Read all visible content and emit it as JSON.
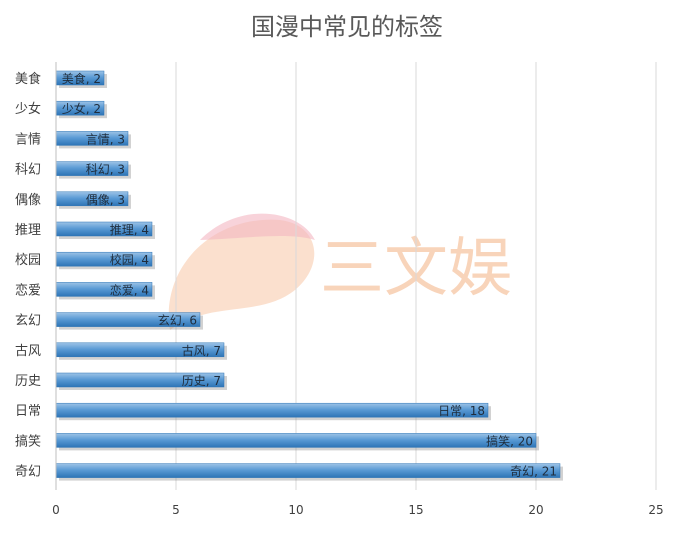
{
  "chart_data": {
    "type": "bar",
    "orientation": "horizontal",
    "title": "国漫中常见的标签",
    "categories": [
      "奇幻",
      "搞笑",
      "日常",
      "历史",
      "古风",
      "玄幻",
      "恋爱",
      "校园",
      "推理",
      "偶像",
      "科幻",
      "言情",
      "少女",
      "美食"
    ],
    "values": [
      21,
      20,
      18,
      7,
      7,
      6,
      4,
      4,
      4,
      3,
      3,
      3,
      2,
      2
    ],
    "xlim": [
      0,
      25
    ],
    "xticks": [
      0,
      5,
      10,
      15,
      20,
      25
    ],
    "xlabel": "",
    "ylabel": "",
    "grid": "vertical",
    "legend": "none",
    "data_label_format": "category, value",
    "colors": {
      "bar": "#5b9bd5",
      "bar_light": "#9dc3e6",
      "bar_dark": "#2e75b6",
      "grid": "#d9d9d9"
    }
  },
  "watermark": {
    "text": "三文娱",
    "colors": {
      "text": "#f4b183",
      "petal_orange": "#f8cbad",
      "petal_pink": "#f4b6c2"
    }
  }
}
